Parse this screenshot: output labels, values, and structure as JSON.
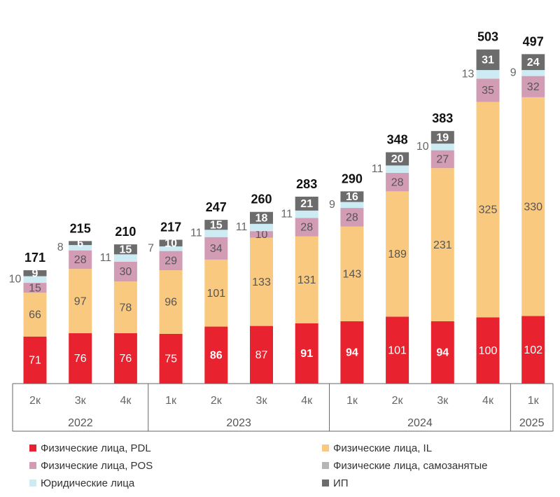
{
  "chart_data": {
    "type": "bar",
    "stacked": true,
    "categories": [
      "2к",
      "3к",
      "4к",
      "1к",
      "2к",
      "3к",
      "4к",
      "1к",
      "2к",
      "3к",
      "4к",
      "1к"
    ],
    "groups": [
      {
        "label": "2022",
        "count": 3
      },
      {
        "label": "2023",
        "count": 4
      },
      {
        "label": "2024",
        "count": 4
      },
      {
        "label": "2025",
        "count": 1
      }
    ],
    "totals": [
      171,
      215,
      210,
      217,
      247,
      260,
      283,
      290,
      348,
      383,
      503,
      497
    ],
    "series": [
      {
        "name": "Физические лица, PDL",
        "color": "#e8232f",
        "label_color": "#ffffff",
        "values": [
          71,
          76,
          76,
          75,
          86,
          87,
          91,
          94,
          101,
          94,
          100,
          102
        ],
        "bold": [
          false,
          false,
          false,
          false,
          true,
          false,
          true,
          true,
          false,
          true,
          false,
          false
        ]
      },
      {
        "name": "Физические лица, IL",
        "color": "#f9c97f",
        "label_color": "#555555",
        "values": [
          66,
          97,
          78,
          96,
          101,
          133,
          131,
          143,
          189,
          231,
          325,
          330
        ]
      },
      {
        "name": "Физические лица, POS",
        "color": "#d29cb4",
        "label_color": "#555555",
        "values": [
          15,
          28,
          30,
          29,
          34,
          10,
          28,
          28,
          28,
          27,
          35,
          32
        ]
      },
      {
        "name": "Физические лица, самозанятые",
        "color": "#b5b5b5",
        "label_color": "#555555",
        "values": [
          0,
          0,
          0,
          0,
          0,
          0,
          0,
          0,
          0,
          0,
          0,
          0
        ]
      },
      {
        "name": "Юридические лица",
        "color": "#cdebf3",
        "label_color": "#666666",
        "values": [
          10,
          8,
          11,
          7,
          11,
          11,
          11,
          9,
          11,
          10,
          13,
          9
        ]
      },
      {
        "name": "ИП",
        "color": "#6c6c6c",
        "label_color": "#ffffff",
        "values": [
          9,
          6,
          15,
          10,
          15,
          18,
          21,
          16,
          20,
          19,
          31,
          24
        ]
      }
    ],
    "xlabel": "",
    "ylabel": "",
    "ylim": [
      0,
      503
    ],
    "grid": false,
    "legend_position": "bottom"
  },
  "legend": [
    {
      "label": "Физические лица, PDL",
      "color": "#e8232f"
    },
    {
      "label": "Физические лица, IL",
      "color": "#f9c97f"
    },
    {
      "label": "Физические лица, POS",
      "color": "#d29cb4"
    },
    {
      "label": "Физические лица, самозанятые",
      "color": "#b5b5b5"
    },
    {
      "label": "Юридические лица",
      "color": "#cdebf3"
    },
    {
      "label": "ИП",
      "color": "#6c6c6c"
    }
  ]
}
